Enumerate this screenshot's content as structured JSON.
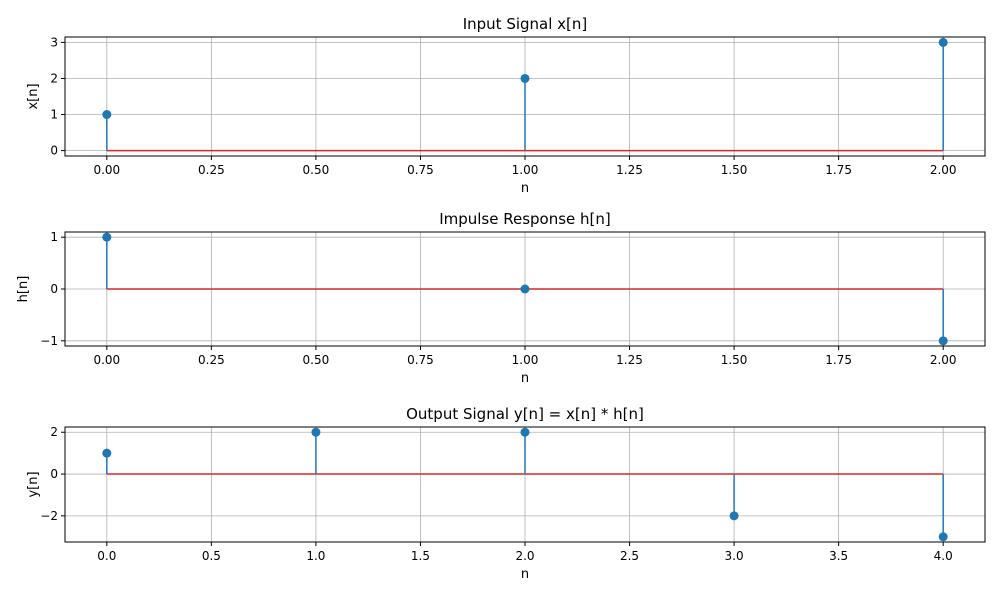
{
  "chart_data": [
    {
      "type": "stem",
      "title": "Input Signal x[n]",
      "xlabel": "n",
      "ylabel": "x[n]",
      "x": [
        0,
        1,
        2
      ],
      "y": [
        1,
        2,
        3
      ],
      "xlim": [
        -0.1,
        2.1
      ],
      "ylim": [
        -0.15,
        3.15
      ],
      "xticks": [
        0,
        0.25,
        0.5,
        0.75,
        1.0,
        1.25,
        1.5,
        1.75,
        2.0
      ],
      "xtick_labels": [
        "0.00",
        "0.25",
        "0.50",
        "0.75",
        "1.00",
        "1.25",
        "1.50",
        "1.75",
        "2.00"
      ],
      "yticks": [
        0,
        1,
        2,
        3
      ],
      "ytick_labels": [
        "0",
        "1",
        "2",
        "3"
      ],
      "grid": true
    },
    {
      "type": "stem",
      "title": "Impulse Response h[n]",
      "xlabel": "n",
      "ylabel": "h[n]",
      "x": [
        0,
        1,
        2
      ],
      "y": [
        1,
        0,
        -1
      ],
      "xlim": [
        -0.1,
        2.1
      ],
      "ylim": [
        -1.1,
        1.1
      ],
      "xticks": [
        0,
        0.25,
        0.5,
        0.75,
        1.0,
        1.25,
        1.5,
        1.75,
        2.0
      ],
      "xtick_labels": [
        "0.00",
        "0.25",
        "0.50",
        "0.75",
        "1.00",
        "1.25",
        "1.50",
        "1.75",
        "2.00"
      ],
      "yticks": [
        -1,
        0,
        1
      ],
      "ytick_labels": [
        "−1",
        "0",
        "1"
      ],
      "grid": true
    },
    {
      "type": "stem",
      "title": "Output Signal y[n] = x[n] * h[n]",
      "xlabel": "n",
      "ylabel": "y[n]",
      "x": [
        0,
        1,
        2,
        3,
        4
      ],
      "y": [
        1,
        2,
        2,
        -2,
        -3
      ],
      "xlim": [
        -0.2,
        4.2
      ],
      "ylim": [
        -3.25,
        2.25
      ],
      "xticks": [
        0,
        0.5,
        1.0,
        1.5,
        2.0,
        2.5,
        3.0,
        3.5,
        4.0
      ],
      "xtick_labels": [
        "0.0",
        "0.5",
        "1.0",
        "1.5",
        "2.0",
        "2.5",
        "3.0",
        "3.5",
        "4.0"
      ],
      "yticks": [
        -2,
        0,
        2
      ],
      "ytick_labels": [
        "−2",
        "0",
        "2"
      ],
      "grid": true
    }
  ],
  "colors": {
    "stem": "#1f77b4",
    "marker": "#1f77b4",
    "baseline": "#d62728",
    "grid": "#b0b0b0",
    "axis": "#000000"
  }
}
